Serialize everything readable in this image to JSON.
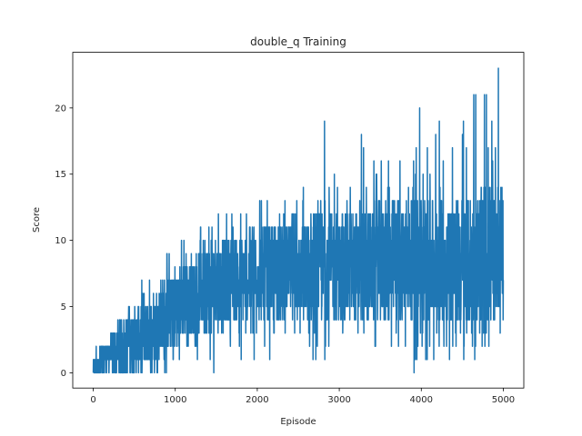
{
  "chart_data": {
    "type": "line",
    "title": "double_q Training",
    "xlabel": "Episode",
    "ylabel": "Score",
    "xlim": [
      -250,
      5250
    ],
    "ylim": [
      -1.15,
      24.2
    ],
    "xticks": [
      0,
      1000,
      2000,
      3000,
      4000,
      5000
    ],
    "xtick_labels": [
      "0",
      "1000",
      "2000",
      "3000",
      "4000",
      "5000"
    ],
    "yticks": [
      0,
      5,
      10,
      15,
      20
    ],
    "ytick_labels": [
      "0",
      "5",
      "10",
      "15",
      "20"
    ],
    "grid": false,
    "legend": null,
    "line_color": "#1f77b4",
    "n_episodes": 5000,
    "series": [
      {
        "name": "score",
        "description": "Per-episode score (noisy, increasing trend); envelope sampled every 250 episodes",
        "envelope": {
          "episode": [
            0,
            250,
            500,
            750,
            1000,
            1250,
            1500,
            1750,
            2000,
            2250,
            2500,
            2750,
            3000,
            3250,
            3500,
            3750,
            4000,
            4250,
            4500,
            4750,
            5000
          ],
          "typical_high": [
            1,
            3,
            5,
            6,
            8,
            9,
            10,
            10,
            11,
            11,
            11,
            12,
            12,
            12,
            13,
            13,
            13,
            13,
            13,
            14,
            14
          ],
          "typical_low": [
            0,
            0,
            0,
            1,
            2,
            3,
            3,
            4,
            4,
            4,
            4,
            4,
            4,
            4,
            4,
            4,
            4,
            4,
            3,
            3,
            5
          ],
          "mean": [
            0.3,
            1.2,
            2.5,
            3.5,
            4.5,
            5.5,
            6.0,
            6.5,
            7.0,
            7.2,
            7.4,
            7.6,
            7.8,
            8.0,
            8.2,
            8.4,
            8.6,
            8.8,
            9.0,
            9.2,
            9.5
          ],
          "min": [
            0,
            0,
            0,
            0,
            0,
            1,
            0,
            1,
            1,
            1,
            0,
            0,
            1,
            1,
            1,
            1,
            0,
            1,
            1,
            1,
            3
          ],
          "max": [
            2,
            3,
            6,
            8,
            10,
            11,
            12,
            12,
            14,
            13,
            14,
            19,
            17,
            18,
            17,
            16,
            20,
            18,
            21,
            23,
            14
          ]
        },
        "peaks": [
          {
            "episode": 2820,
            "value": 19
          },
          {
            "episode": 3270,
            "value": 18
          },
          {
            "episode": 3600,
            "value": 16
          },
          {
            "episode": 3980,
            "value": 20
          },
          {
            "episode": 4220,
            "value": 19
          },
          {
            "episode": 4640,
            "value": 21
          },
          {
            "episode": 4860,
            "value": 19
          },
          {
            "episode": 4940,
            "value": 23
          }
        ]
      }
    ]
  }
}
